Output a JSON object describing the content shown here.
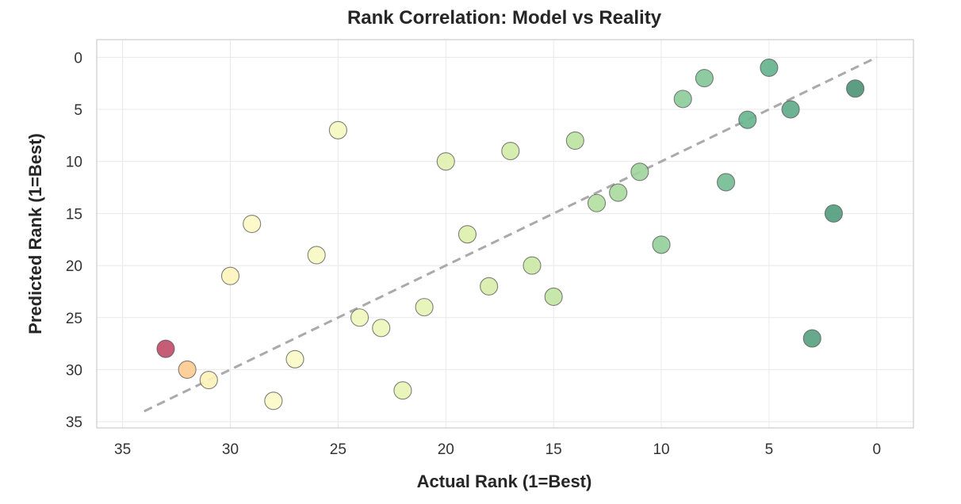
{
  "chart_data": {
    "type": "scatter",
    "title": "Rank Correlation: Model vs Reality",
    "xlabel": "Actual Rank (1=Best)",
    "ylabel": "Predicted Rank (1=Best)",
    "xlim": [
      36.2,
      -1.7
    ],
    "ylim": [
      35.6,
      -1.7
    ],
    "x_inverted": true,
    "y_inverted": true,
    "xticks": [
      35,
      30,
      25,
      20,
      15,
      10,
      5,
      0
    ],
    "yticks": [
      0,
      5,
      10,
      15,
      20,
      25,
      30,
      35
    ],
    "grid": true,
    "colormap": "RdYlGn (by actual rank, best = green)",
    "reference_line": {
      "from": [
        34,
        34
      ],
      "to": [
        0,
        0
      ],
      "style": "dashed",
      "color": "#aaaaaa"
    },
    "points": [
      {
        "x": 33,
        "y": 28,
        "color": "#c04a66"
      },
      {
        "x": 32,
        "y": 30,
        "color": "#fdca8f"
      },
      {
        "x": 31,
        "y": 31,
        "color": "#fdf2b8"
      },
      {
        "x": 30,
        "y": 21,
        "color": "#fdf5bd"
      },
      {
        "x": 29,
        "y": 16,
        "color": "#fdf8c4"
      },
      {
        "x": 28,
        "y": 33,
        "color": "#fbf9c6"
      },
      {
        "x": 27,
        "y": 29,
        "color": "#f9f9c4"
      },
      {
        "x": 26,
        "y": 19,
        "color": "#f7f8c2"
      },
      {
        "x": 25,
        "y": 7,
        "color": "#f5f8c0"
      },
      {
        "x": 24,
        "y": 25,
        "color": "#f0f7bc"
      },
      {
        "x": 23,
        "y": 26,
        "color": "#ecf6b9"
      },
      {
        "x": 22,
        "y": 32,
        "color": "#e8f4b5"
      },
      {
        "x": 21,
        "y": 24,
        "color": "#e4f3b2"
      },
      {
        "x": 20,
        "y": 10,
        "color": "#e0f1ae"
      },
      {
        "x": 19,
        "y": 17,
        "color": "#dbefab"
      },
      {
        "x": 18,
        "y": 22,
        "color": "#d6eda8"
      },
      {
        "x": 17,
        "y": 9,
        "color": "#d0eba6"
      },
      {
        "x": 16,
        "y": 20,
        "color": "#c9e8a4"
      },
      {
        "x": 15,
        "y": 23,
        "color": "#c2e5a2"
      },
      {
        "x": 14,
        "y": 8,
        "color": "#bbe2a1"
      },
      {
        "x": 13,
        "y": 14,
        "color": "#b2de9f"
      },
      {
        "x": 12,
        "y": 13,
        "color": "#a8d99d"
      },
      {
        "x": 11,
        "y": 11,
        "color": "#9ed49b"
      },
      {
        "x": 10,
        "y": 18,
        "color": "#94cf99"
      },
      {
        "x": 9,
        "y": 4,
        "color": "#8ccb98"
      },
      {
        "x": 8,
        "y": 2,
        "color": "#82c596"
      },
      {
        "x": 7,
        "y": 12,
        "color": "#72bb91"
      },
      {
        "x": 6,
        "y": 6,
        "color": "#68b58e"
      },
      {
        "x": 5,
        "y": 1,
        "color": "#62b18c"
      },
      {
        "x": 4,
        "y": 5,
        "color": "#5daa87"
      },
      {
        "x": 3,
        "y": 27,
        "color": "#56a080"
      },
      {
        "x": 2,
        "y": 15,
        "color": "#509c7c"
      },
      {
        "x": 1,
        "y": 3,
        "color": "#4b9274"
      }
    ]
  }
}
